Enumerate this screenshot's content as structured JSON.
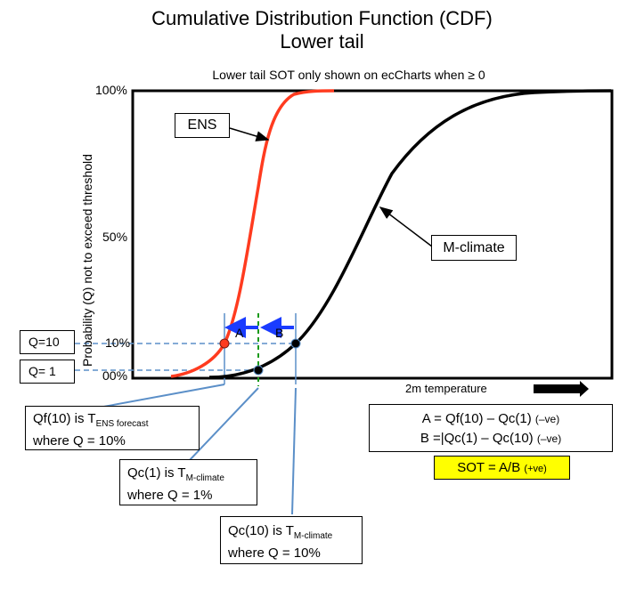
{
  "title_line1": "Cumulative Distribution Function (CDF)",
  "title_line2": "Lower tail",
  "subtitle": "Lower tail SOT only shown on ecCharts when  ≥ 0",
  "y_axis_label": "Probability (Q) not to exceed threshold",
  "ticks": {
    "t100": "100%",
    "t50": "50%",
    "t10": "10%",
    "t00": "00%"
  },
  "side_boxes": {
    "q10": "Q=10",
    "q1": "Q= 1"
  },
  "curve_labels": {
    "ens": "ENS",
    "mclimate": "M-climate"
  },
  "marker_labels": {
    "a": "A",
    "b": "B"
  },
  "x_axis_label": "2m temperature",
  "callouts": {
    "qf10": {
      "prefix": "Qf(10) is T",
      "sub": "ENS forecast",
      "line2": "where Q = 10%"
    },
    "qc1": {
      "prefix": "Qc(1) is T",
      "sub": "M-climate",
      "line2": "where Q = 1%"
    },
    "qc10": {
      "prefix": "Qc(10) is T",
      "sub": "M-climate",
      "line2": "where Q = 10%"
    }
  },
  "formula": {
    "a_main": "A = Qf(10) – Qc(1)",
    "a_note": "(–ve)",
    "b_main": "B =|Qc(1) – Qc(10)",
    "b_note": "(–ve)"
  },
  "sot": {
    "main": "SOT = A/B",
    "note": "(+ve)"
  },
  "colors": {
    "ens": "#ff3b1f",
    "mclimate": "#000000",
    "arrow": "#1a3cff",
    "guide": "#5b8fc8",
    "dashed_green": "#1a9a1a",
    "sot_bg": "#ffff00"
  }
}
